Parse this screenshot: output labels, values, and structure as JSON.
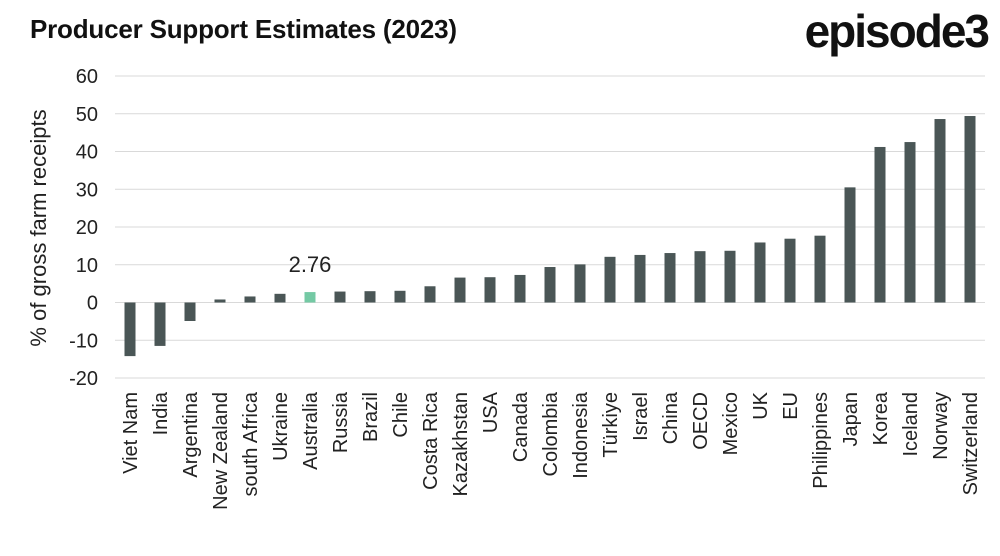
{
  "header": {
    "title": "Producer Support Estimates (2023)",
    "brand": "episode3"
  },
  "colors": {
    "bar": "#4a5656",
    "highlight": "#74c9a4",
    "grid": "#d9d9d9",
    "text": "#222222"
  },
  "chart_data": {
    "type": "bar",
    "title": "Producer Support Estimates (2023)",
    "xlabel": "",
    "ylabel": "% of gross farm receipts",
    "ylim": [
      -20,
      60
    ],
    "yticks": [
      60,
      50,
      40,
      30,
      20,
      10,
      0,
      -10,
      -20
    ],
    "grid": true,
    "categories": [
      "Viet Nam",
      "India",
      "Argentina",
      "New Zealand",
      "south Africa",
      "Ukraine",
      "Australia",
      "Russia",
      "Brazil",
      "Chile",
      "Costa Rica",
      "Kazakhstan",
      "USA",
      "Canada",
      "Colombia",
      "Indonesia",
      "Türkiye",
      "Israel",
      "China",
      "OECD",
      "Mexico",
      "UK",
      "EU",
      "Philippines",
      "Japan",
      "Korea",
      "Iceland",
      "Norway",
      "Switzerland"
    ],
    "values": [
      -14.2,
      -11.5,
      -4.9,
      0.8,
      1.6,
      2.3,
      2.76,
      2.9,
      3.0,
      3.1,
      4.3,
      6.6,
      6.7,
      7.3,
      9.4,
      10.1,
      12.1,
      12.6,
      13.1,
      13.6,
      13.7,
      15.9,
      16.9,
      17.7,
      30.5,
      41.2,
      42.5,
      48.6,
      49.4
    ],
    "highlight": "Australia",
    "data_labels": [
      {
        "category": "Australia",
        "text": "2.76"
      }
    ]
  }
}
